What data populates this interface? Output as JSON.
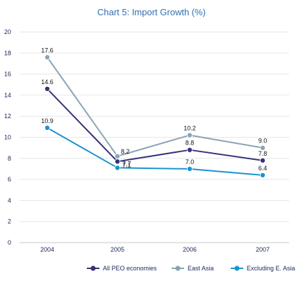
{
  "chart_data": {
    "type": "line",
    "title": "Chart 5: Import Growth (%)",
    "xlabel": "",
    "ylabel": "",
    "x": [
      "2004",
      "2005",
      "2006",
      "2007"
    ],
    "ylim": [
      0,
      20
    ],
    "yticks": [
      "0",
      "2",
      "4",
      "6",
      "8",
      "10",
      "12",
      "14",
      "16",
      "18",
      "20"
    ],
    "grid": true,
    "legend_position": "bottom-right",
    "series": [
      {
        "name": "All PEO economies",
        "color": "#35327a",
        "values": [
          14.6,
          7.7,
          8.8,
          7.8
        ],
        "labels": [
          "14.6",
          "7.7",
          "8.8",
          "7.8"
        ]
      },
      {
        "name": "East Asia",
        "color": "#8aa4b5",
        "values": [
          17.6,
          8.2,
          10.2,
          9.0
        ],
        "labels": [
          "17.6",
          "8.2",
          "10.2",
          "9.0"
        ]
      },
      {
        "name": "Excluding E. Asia",
        "color": "#1994cf",
        "values": [
          10.9,
          7.1,
          7.0,
          6.4
        ],
        "labels": [
          "10.9",
          "7.1",
          "7.0",
          "6.4"
        ]
      }
    ]
  }
}
